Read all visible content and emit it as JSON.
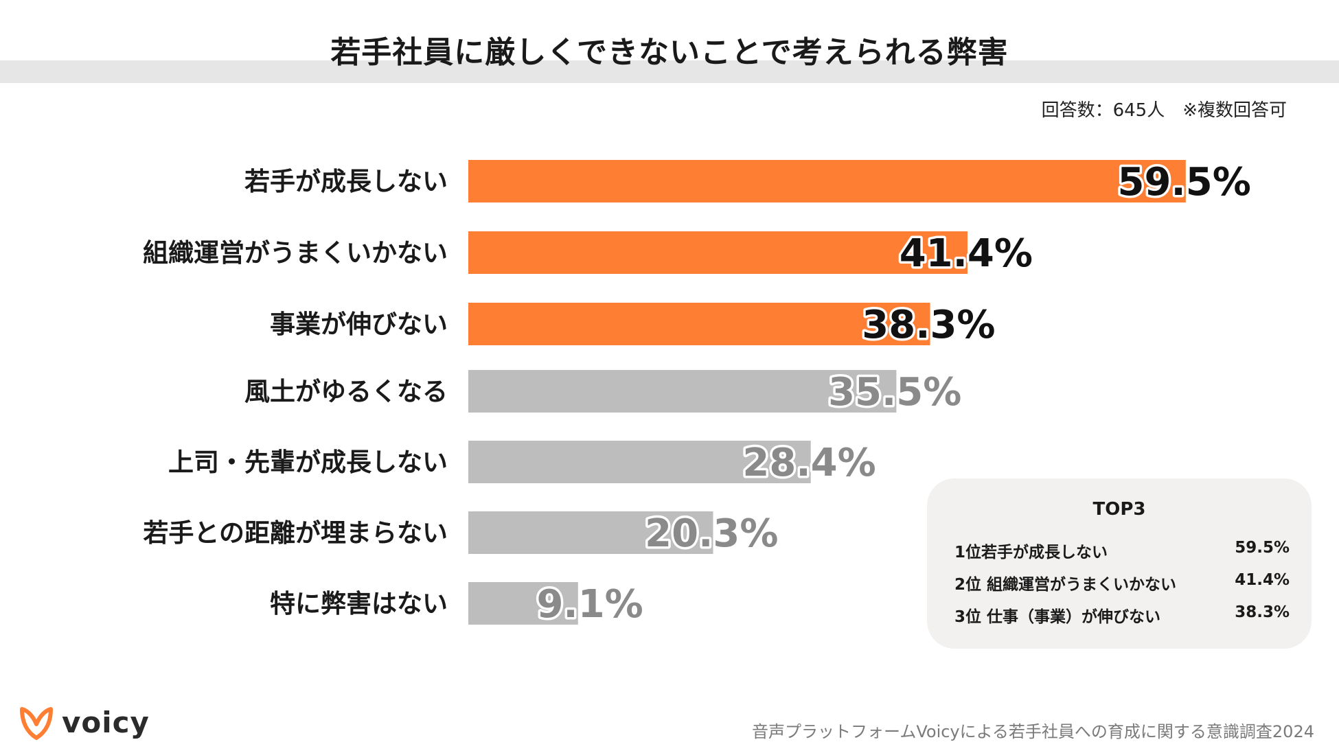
{
  "chart_data": {
    "type": "bar",
    "orientation": "horizontal",
    "title": "若手社員に厳しくできないことで考えられる弊害",
    "subtitle": "回答数：645人　※複数回答可",
    "categories": [
      "若手が成長しない",
      "組織運営がうまくいかない",
      "事業が伸びない",
      "風土がゆるくなる",
      "上司・先輩が成長しない",
      "若手との距離が埋まらない",
      "特に弊害はない"
    ],
    "values": [
      59.5,
      41.4,
      38.3,
      35.5,
      28.4,
      20.3,
      9.1
    ],
    "value_labels": [
      "59.5%",
      "41.4%",
      "38.3%",
      "35.5%",
      "28.4%",
      "20.3%",
      "9.1%"
    ],
    "highlight_count": 3,
    "colors": {
      "highlight": "#fe7f34",
      "default": "#bdbdbd"
    },
    "xlim": [
      0,
      100
    ],
    "grid": false,
    "legend": "none"
  },
  "top3": {
    "title": "TOP3",
    "rows": [
      {
        "label": "1位若手が成長しない",
        "value": "59.5%"
      },
      {
        "label": "2位 組織運営がうまくいかない",
        "value": "41.4%"
      },
      {
        "label": "3位 仕事（事業）が伸びない",
        "value": "38.3%"
      }
    ]
  },
  "brand": {
    "name": "voicy",
    "logo_icon": "voicy-v-logo-icon",
    "color": "#fe7f34"
  },
  "footer": {
    "source": "音声プラットフォームVoicyによる若手社員への育成に関する意識調査2024"
  }
}
